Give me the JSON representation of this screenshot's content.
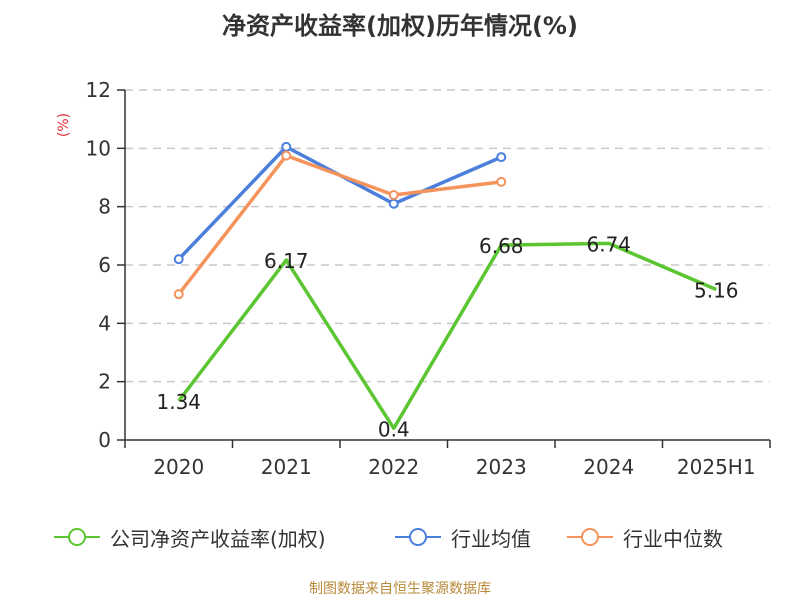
{
  "title": "净资产收益率(加权)历年情况(%)",
  "source": "制图数据来自恒生聚源数据库",
  "chart_data": {
    "type": "line",
    "title": "净资产收益率(加权)历年情况(%)",
    "ylabel": "(%)",
    "xlabel": "",
    "categories": [
      "2020",
      "2021",
      "2022",
      "2023",
      "2024",
      "2025H1"
    ],
    "ylim": [
      0,
      12
    ],
    "yticks": [
      0,
      2,
      4,
      6,
      8,
      10,
      12
    ],
    "grid": true,
    "legend_position": "bottom",
    "series": [
      {
        "name": "公司净资产收益率(加权)",
        "color": "#5cc532",
        "values": [
          1.34,
          6.17,
          0.4,
          6.68,
          6.74,
          5.16
        ],
        "labels": [
          "1.34",
          "6.17",
          "0.4",
          "6.68",
          "6.74",
          "5.16"
        ],
        "show_labels": true,
        "markers": false
      },
      {
        "name": "行业均值",
        "color": "#4b7fdb",
        "values": [
          6.2,
          10.05,
          8.1,
          9.7,
          null,
          null
        ],
        "show_labels": false,
        "markers": true
      },
      {
        "name": "行业中位数",
        "color": "#f5935c",
        "values": [
          5.0,
          9.75,
          8.4,
          8.85,
          null,
          null
        ],
        "show_labels": false,
        "markers": true
      }
    ]
  }
}
